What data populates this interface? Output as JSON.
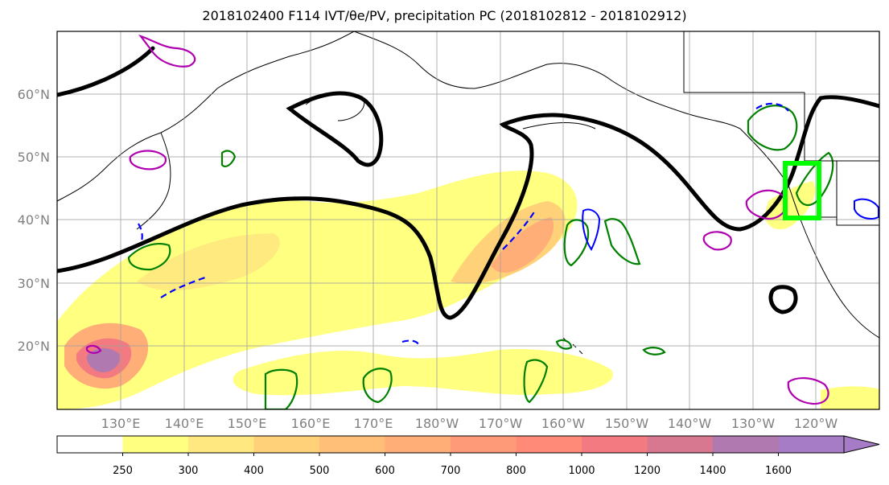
{
  "title": "2018102400 F114 IVT/θe/PV, precipitation PC (2018102812 - 2018102912)",
  "map": {
    "lat_ticks": [
      {
        "label": "60°N",
        "value": 60
      },
      {
        "label": "50°N",
        "value": 50
      },
      {
        "label": "40°N",
        "value": 40
      },
      {
        "label": "30°N",
        "value": 30
      },
      {
        "label": "20°N",
        "value": 20
      }
    ],
    "lon_ticks": [
      {
        "label": "130°E",
        "value": 130
      },
      {
        "label": "140°E",
        "value": 140
      },
      {
        "label": "150°E",
        "value": 150
      },
      {
        "label": "160°E",
        "value": 160
      },
      {
        "label": "170°E",
        "value": 170
      },
      {
        "label": "180°W",
        "value": 180
      },
      {
        "label": "170°W",
        "value": 190
      },
      {
        "label": "160°W",
        "value": 200
      },
      {
        "label": "150°W",
        "value": 210
      },
      {
        "label": "140°W",
        "value": 220
      },
      {
        "label": "130°W",
        "value": 230
      },
      {
        "label": "120°W",
        "value": 240
      }
    ],
    "lon_range": [
      120,
      250
    ],
    "lat_range": [
      10,
      70
    ],
    "grid": true,
    "highlight_box_color": "#00ff00",
    "theta_contour_color": "#000000",
    "pv_contour_color": "#b000b0",
    "precip_contour_color": "#008000",
    "neg_contour_color": "#0000ff"
  },
  "colorbar": {
    "levels": [
      "250",
      "300",
      "400",
      "500",
      "600",
      "700",
      "800",
      "1000",
      "1200",
      "1400",
      "1600"
    ],
    "colors": [
      "#ffffff",
      "#ffff80",
      "#ffe880",
      "#ffd27a",
      "#ffbf78",
      "#ffae78",
      "#ff9a78",
      "#ff8a78",
      "#f27a80",
      "#d87890",
      "#b07ab0",
      "#a77cc6"
    ],
    "extend": "max"
  }
}
